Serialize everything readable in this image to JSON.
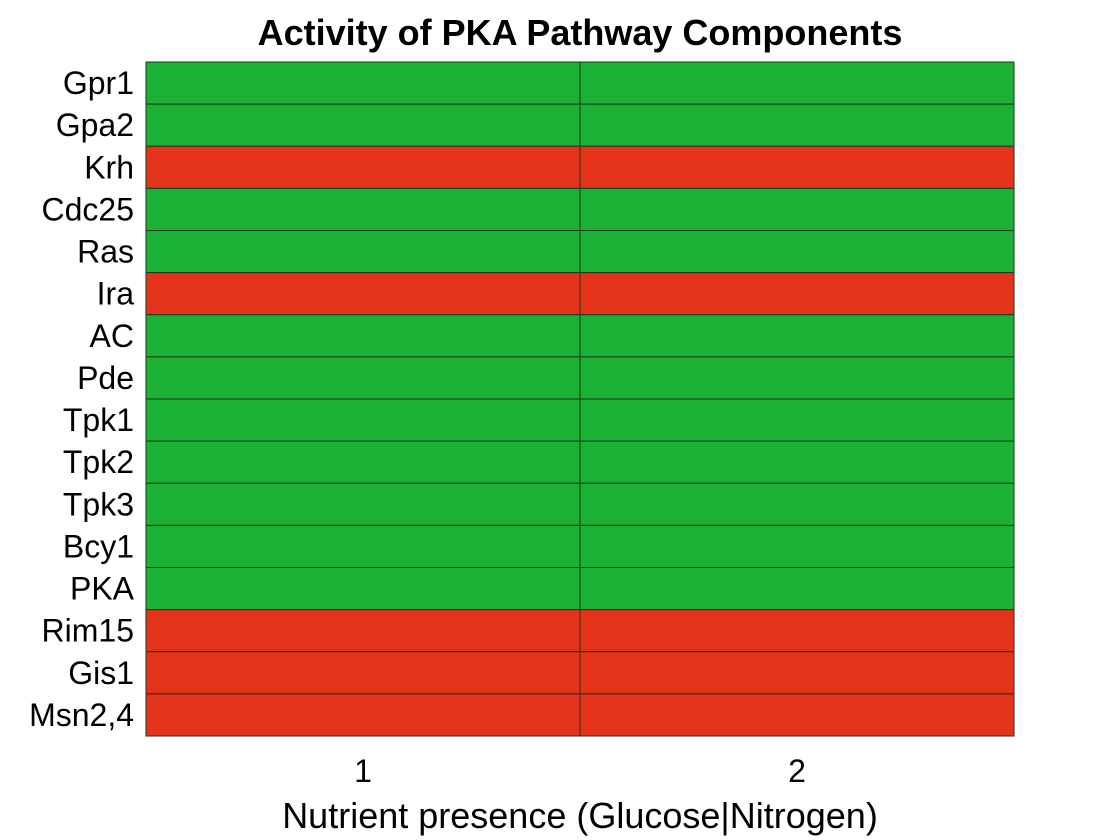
{
  "chart_data": {
    "type": "heatmap",
    "title": "Activity of PKA Pathway Components",
    "xlabel": "Nutrient presence (Glucose|Nitrogen)",
    "ylabel": "",
    "x": [
      "1",
      "2"
    ],
    "y": [
      "Gpr1",
      "Gpa2",
      "Krh",
      "Cdc25",
      "Ras",
      "Ira",
      "AC",
      "Pde",
      "Tpk1",
      "Tpk2",
      "Tpk3",
      "Bcy1",
      "PKA",
      "Rim15",
      "Gis1",
      "Msn2,4"
    ],
    "values": [
      [
        1,
        1
      ],
      [
        1,
        1
      ],
      [
        0,
        0
      ],
      [
        1,
        1
      ],
      [
        1,
        1
      ],
      [
        0,
        0
      ],
      [
        1,
        1
      ],
      [
        1,
        1
      ],
      [
        1,
        1
      ],
      [
        1,
        1
      ],
      [
        1,
        1
      ],
      [
        1,
        1
      ],
      [
        1,
        1
      ],
      [
        0,
        0
      ],
      [
        0,
        0
      ],
      [
        0,
        0
      ]
    ],
    "colors": {
      "active": "#1bb134",
      "inactive": "#e5321a",
      "grid": "#1a3a1a"
    },
    "grid": true
  }
}
